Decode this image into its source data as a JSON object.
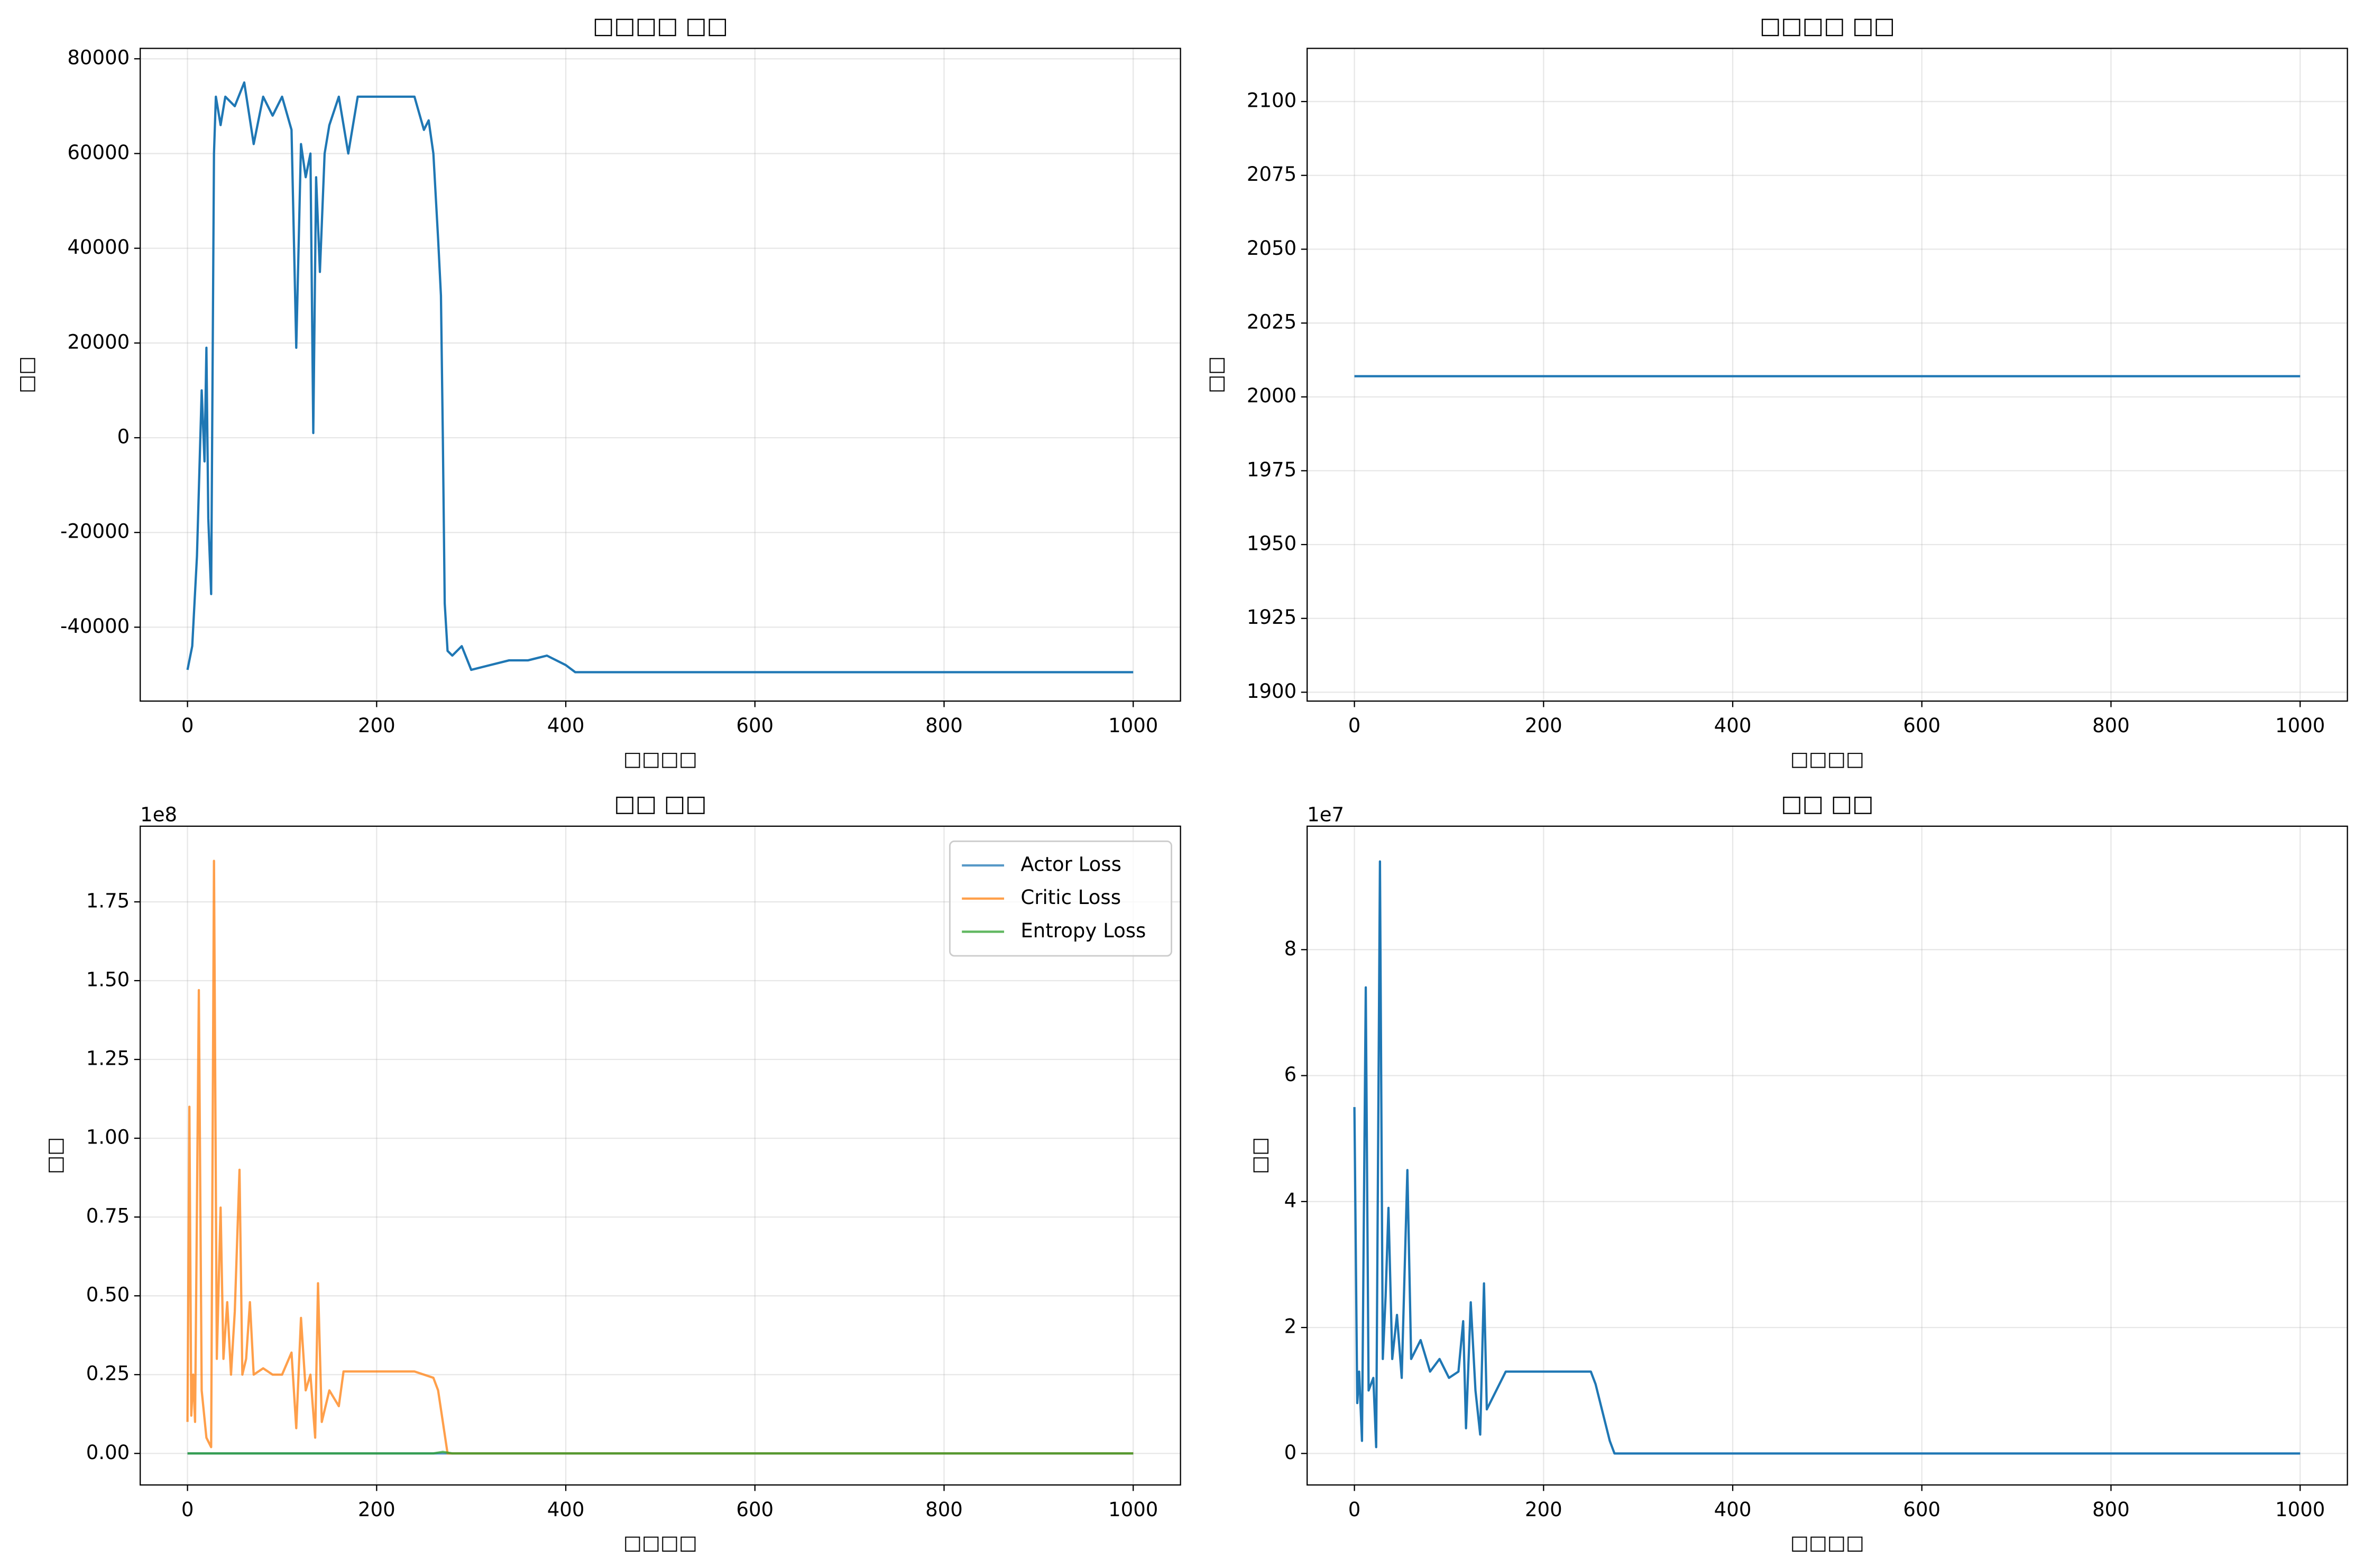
{
  "chart_data": [
    {
      "type": "line",
      "title": "□□□□ □□",
      "x_label": "□□□□",
      "y_label": "□□",
      "grid": true,
      "xlim": [
        -50,
        1050
      ],
      "xticks": [
        0,
        200,
        400,
        600,
        800,
        1000
      ],
      "ylim": [
        -55600,
        82200
      ],
      "yticks": [
        -40000,
        -20000,
        0,
        20000,
        40000,
        60000,
        80000
      ],
      "series": [
        {
          "color": "#1f77b4",
          "x": [
            0,
            5,
            10,
            15,
            18,
            20,
            22,
            25,
            28,
            30,
            35,
            40,
            50,
            60,
            70,
            80,
            90,
            100,
            110,
            115,
            120,
            125,
            130,
            133,
            136,
            140,
            145,
            150,
            160,
            170,
            180,
            200,
            220,
            240,
            250,
            255,
            260,
            265,
            268,
            270,
            272,
            275,
            280,
            290,
            300,
            320,
            340,
            360,
            380,
            400,
            410,
            420,
            500,
            600,
            700,
            800,
            900,
            1000
          ],
          "values": [
            -49000,
            -44000,
            -25000,
            10000,
            -5000,
            19000,
            -17000,
            -33000,
            60000,
            72000,
            66000,
            72000,
            70000,
            75000,
            62000,
            72000,
            68000,
            72000,
            65000,
            19000,
            62000,
            55000,
            60000,
            1000,
            55000,
            35000,
            60000,
            66000,
            72000,
            60000,
            72000,
            72000,
            72000,
            72000,
            65000,
            67000,
            60000,
            42000,
            30000,
            0,
            -35000,
            -45000,
            -46000,
            -44000,
            -49000,
            -48000,
            -47000,
            -47000,
            -46000,
            -48000,
            -49500,
            -49500,
            -49500,
            -49500,
            -49500,
            -49500,
            -49500,
            -49500
          ]
        }
      ]
    },
    {
      "type": "line",
      "title": "□□□□ □□",
      "x_label": "□□□□",
      "y_label": "□□",
      "grid": true,
      "xlim": [
        -50,
        1050
      ],
      "xticks": [
        0,
        200,
        400,
        600,
        800,
        1000
      ],
      "ylim": [
        1897,
        2118
      ],
      "yticks": [
        1900,
        1925,
        1950,
        1975,
        2000,
        2025,
        2050,
        2075,
        2100
      ],
      "series": [
        {
          "color": "#1f77b4",
          "x": [
            0,
            1000
          ],
          "values": [
            2007,
            2007
          ]
        }
      ]
    },
    {
      "type": "line",
      "title": "□□ □□",
      "x_label": "□□□□",
      "y_label": "□□",
      "grid": true,
      "offset_label": "1e8",
      "legend": "upper right",
      "xlim": [
        -50,
        1050
      ],
      "xticks": [
        0,
        200,
        400,
        600,
        800,
        1000
      ],
      "ylim": [
        -0.1,
        1.99
      ],
      "yticks": [
        {
          "value": 0,
          "label": "0.00"
        },
        {
          "value": 0.25,
          "label": "0.25"
        },
        {
          "value": 0.5,
          "label": "0.50"
        },
        {
          "value": 0.75,
          "label": "0.75"
        },
        {
          "value": 1,
          "label": "1.00"
        },
        {
          "value": 1.25,
          "label": "1.25"
        },
        {
          "value": 1.5,
          "label": "1.50"
        },
        {
          "value": 1.75,
          "label": "1.75"
        }
      ],
      "series": [
        {
          "name": "Actor Loss",
          "color": "#1f77b4",
          "x": [
            0,
            500,
            1000
          ],
          "values": [
            0,
            0,
            0
          ]
        },
        {
          "name": "Critic Loss",
          "color": "#ff7f0e",
          "x": [
            0,
            2,
            4,
            6,
            8,
            12,
            15,
            20,
            25,
            28,
            31,
            35,
            38,
            42,
            46,
            50,
            55,
            58,
            62,
            66,
            70,
            80,
            90,
            100,
            110,
            115,
            120,
            125,
            130,
            135,
            138,
            142,
            150,
            160,
            165,
            200,
            240,
            260,
            265,
            270,
            275,
            300,
            1000
          ],
          "values": [
            0.1,
            1.1,
            0.12,
            0.25,
            0.1,
            1.47,
            0.2,
            0.05,
            0.02,
            1.88,
            0.3,
            0.78,
            0.3,
            0.48,
            0.25,
            0.45,
            0.9,
            0.25,
            0.3,
            0.48,
            0.25,
            0.27,
            0.25,
            0.25,
            0.32,
            0.08,
            0.43,
            0.2,
            0.25,
            0.05,
            0.54,
            0.1,
            0.2,
            0.15,
            0.26,
            0.26,
            0.26,
            0.24,
            0.2,
            0.1,
            0,
            0,
            0
          ]
        },
        {
          "name": "Entropy Loss",
          "color": "#2ca02c",
          "x": [
            0,
            260,
            270,
            280,
            1000
          ],
          "values": [
            0,
            0,
            0.005,
            0,
            0
          ]
        }
      ]
    },
    {
      "type": "line",
      "title": "□□ □□",
      "x_label": "□□□□",
      "y_label": "□□",
      "grid": true,
      "offset_label": "1e7",
      "xlim": [
        -50,
        1050
      ],
      "xticks": [
        0,
        200,
        400,
        600,
        800,
        1000
      ],
      "ylim": [
        -0.5,
        9.96
      ],
      "yticks": [
        0,
        2,
        4,
        6,
        8
      ],
      "series": [
        {
          "color": "#1f77b4",
          "x": [
            0,
            3,
            5,
            8,
            12,
            15,
            20,
            23,
            27,
            30,
            33,
            36,
            40,
            45,
            50,
            56,
            60,
            70,
            80,
            90,
            100,
            110,
            115,
            118,
            123,
            128,
            133,
            137,
            140,
            150,
            160,
            200,
            250,
            255,
            265,
            270,
            275,
            300,
            1000
          ],
          "values": [
            5.5,
            0.8,
            1.3,
            0.2,
            7.4,
            1.0,
            1.2,
            0.1,
            9.4,
            1.5,
            2.5,
            3.9,
            1.5,
            2.2,
            1.2,
            4.5,
            1.5,
            1.8,
            1.3,
            1.5,
            1.2,
            1.3,
            2.1,
            0.4,
            2.4,
            1.0,
            0.3,
            2.7,
            0.7,
            1.0,
            1.3,
            1.3,
            1.3,
            1.1,
            0.5,
            0.2,
            0,
            0,
            0
          ]
        }
      ]
    }
  ]
}
